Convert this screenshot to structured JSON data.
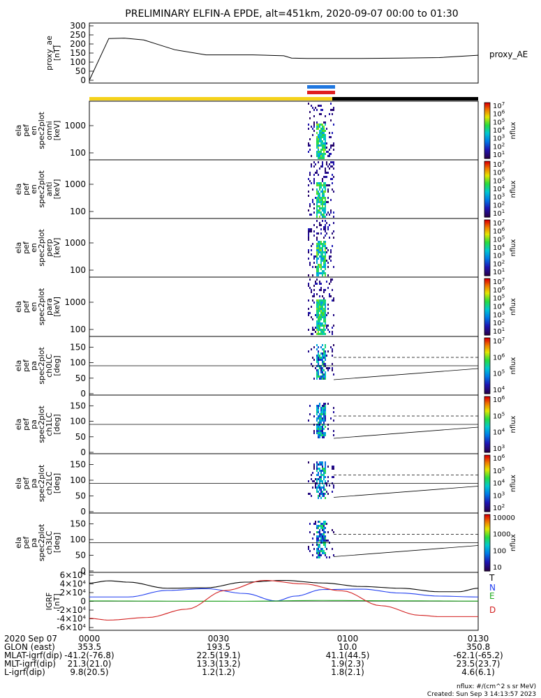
{
  "title": "PRELIMINARY ELFIN-A EPDE, alt=451km, 2020-09-07 00:00 to 01:30",
  "colors": {
    "sun_bar": "#f5d21a",
    "shadow_bar": "#000000",
    "blue_bar": "#1f77e0",
    "red_bar": "#e01f1f",
    "T": "#000000",
    "N": "#1e3cf0",
    "E": "#1eaa1e",
    "D": "#d21e1e"
  },
  "chart_data": [
    {
      "type": "line",
      "ylabel": "proxy_ae\n[nT]",
      "label_right": "proxy_AE",
      "yticks": [
        "0",
        "50",
        "100",
        "150",
        "200",
        "250",
        "300"
      ],
      "ylim": [
        0,
        300
      ],
      "series": [
        {
          "name": "proxy_AE",
          "x": [
            0.0,
            0.05,
            0.09,
            0.14,
            0.18,
            0.22,
            0.3,
            0.32,
            0.36,
            0.42,
            0.5,
            0.52,
            0.56,
            0.6,
            0.7,
            0.8,
            0.9,
            1.0
          ],
          "y": [
            0,
            230,
            232,
            222,
            195,
            168,
            140,
            140,
            140,
            140,
            135,
            122,
            120,
            120,
            120,
            122,
            125,
            138
          ]
        }
      ]
    },
    {
      "type": "heatmap",
      "ylabel": "ela\npef\nen\nspec2plot\nomni\n[keV]",
      "yticks": [
        "100",
        "1000"
      ],
      "cbar_ticks": [
        "10^1",
        "10^2",
        "10^3",
        "10^4",
        "10^5",
        "10^6",
        "10^7"
      ],
      "cbar_label": "nflux"
    },
    {
      "type": "heatmap",
      "ylabel": "ela\npef\nen\nspec2plot\nanti\n[keV]",
      "yticks": [
        "100",
        "1000"
      ],
      "cbar_ticks": [
        "10^1",
        "10^2",
        "10^3",
        "10^4",
        "10^5",
        "10^6",
        "10^7"
      ],
      "cbar_label": "nflux"
    },
    {
      "type": "heatmap",
      "ylabel": "ela\npef\nen\nspec2plot\nperp\n[keV]",
      "yticks": [
        "100",
        "1000"
      ],
      "cbar_ticks": [
        "10^1",
        "10^2",
        "10^3",
        "10^4",
        "10^5",
        "10^6",
        "10^7"
      ],
      "cbar_label": "nflux"
    },
    {
      "type": "heatmap",
      "ylabel": "ela\npef\nen\nspec2plot\npara\n[keV]",
      "yticks": [
        "100",
        "1000"
      ],
      "cbar_ticks": [
        "10^1",
        "10^2",
        "10^3",
        "10^4",
        "10^5",
        "10^6",
        "10^7"
      ],
      "cbar_label": "nflux"
    },
    {
      "type": "heatmap",
      "ylabel": "ela\npef\npa\nspec2plot\nch0LC\n[deg]",
      "yticks": [
        "0",
        "50",
        "100",
        "150"
      ],
      "cbar_ticks": [
        "10^4",
        "10^5",
        "10^6",
        "10^7"
      ],
      "cbar_label": "nflux"
    },
    {
      "type": "heatmap",
      "ylabel": "ela\npef\npa\nspec2plot\nch1LC\n[deg]",
      "yticks": [
        "0",
        "50",
        "100",
        "150"
      ],
      "cbar_ticks": [
        "10^3",
        "10^4",
        "10^5",
        "10^6"
      ],
      "cbar_label": "nflux"
    },
    {
      "type": "heatmap",
      "ylabel": "ela\npef\npa\nspec2plot\nch2LC\n[deg]",
      "yticks": [
        "0",
        "50",
        "100",
        "150"
      ],
      "cbar_ticks": [
        "10^2",
        "10^3",
        "10^4",
        "10^5",
        "10^6"
      ],
      "cbar_label": "nflux"
    },
    {
      "type": "heatmap",
      "ylabel": "ela\npef\npa\nspec2plot\nch3LC\n[deg]",
      "yticks": [
        "0",
        "50",
        "100",
        "150"
      ],
      "cbar_ticks": [
        "10",
        "100",
        "1000",
        "10000"
      ],
      "cbar_label": "nflux"
    },
    {
      "type": "line",
      "ylabel": "IGRF\n[nT]",
      "yticks": [
        "-6×10^4",
        "-4×10^4",
        "-2×10^4",
        "0",
        "2×10^4",
        "4×10^4",
        "6×10^4"
      ],
      "ylim": [
        -60000,
        60000
      ],
      "series": [
        {
          "name": "T",
          "x": [
            0.0,
            0.05,
            0.1,
            0.2,
            0.3,
            0.4,
            0.5,
            0.6,
            0.7,
            0.8,
            0.9,
            0.95,
            1.0
          ],
          "y": [
            42000,
            47000,
            44000,
            30000,
            31000,
            44000,
            48000,
            42000,
            34000,
            30000,
            22000,
            22000,
            30000
          ]
        },
        {
          "name": "N",
          "x": [
            0.0,
            0.1,
            0.2,
            0.3,
            0.4,
            0.48,
            0.53,
            0.6,
            0.7,
            0.8,
            0.9,
            1.0
          ],
          "y": [
            10000,
            10000,
            25000,
            29000,
            18000,
            1000,
            12000,
            27000,
            28000,
            19000,
            12000,
            10000
          ]
        },
        {
          "name": "E",
          "x": [
            0.0,
            0.2,
            0.4,
            0.6,
            0.8,
            1.0
          ],
          "y": [
            1000,
            400,
            200,
            2000,
            1200,
            500
          ]
        },
        {
          "name": "D",
          "x": [
            0.0,
            0.05,
            0.15,
            0.25,
            0.35,
            0.45,
            0.55,
            0.65,
            0.75,
            0.85,
            0.9,
            1.0
          ],
          "y": [
            -39000,
            -43000,
            -37000,
            -18000,
            25000,
            48000,
            40000,
            24000,
            -10000,
            -32000,
            -35000,
            -35000
          ]
        }
      ]
    }
  ],
  "xticks": [
    "0000",
    "0030",
    "0100",
    "0130"
  ],
  "footer": {
    "date": "2020 Sep 07",
    "rows": [
      {
        "label": "GLON (east)",
        "values": [
          "353.5",
          "193.5",
          "10.0",
          "350.8"
        ]
      },
      {
        "label": "MLAT-igrf(dip)",
        "values": [
          "-41.2(-76.8)",
          "22.5(19.1)",
          "41.1(44.5)",
          "-62.1(-65.2)"
        ]
      },
      {
        "label": "MLT-igrf(dip)",
        "values": [
          "21.3(21.0)",
          "13.3(13.2)",
          "1.9(2.3)",
          "23.5(23.7)"
        ]
      },
      {
        "label": "L-igrf(dip)",
        "values": [
          "9.8(20.5)",
          "1.2(1.2)",
          "1.8(2.1)",
          "4.6(6.1)"
        ]
      }
    ],
    "note1": "nflux: #/(cm^2 s sr MeV)",
    "note2": "Created: Sun Sep  3 14:13:57 2023"
  }
}
